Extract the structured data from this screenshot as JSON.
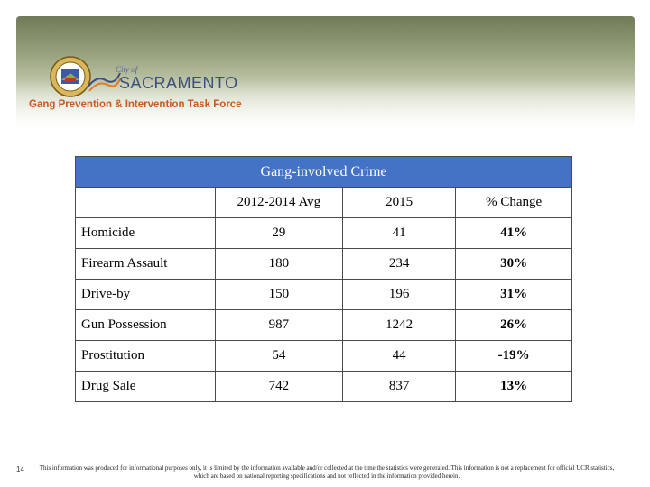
{
  "header": {
    "city_of": "City of",
    "city_name": "SACRAMENTO",
    "tagline": "Gang Prevention & Intervention Task Force"
  },
  "table": {
    "title": "Gang-involved  Crime",
    "columns": [
      "",
      "2012-2014 Avg",
      "2015",
      "% Change"
    ],
    "rows": [
      {
        "label": "Homicide",
        "avg": "29",
        "y2015": "41",
        "change": "41%"
      },
      {
        "label": "Firearm Assault",
        "avg": "180",
        "y2015": "234",
        "change": "30%"
      },
      {
        "label": "Drive-by",
        "avg": "150",
        "y2015": "196",
        "change": "31%"
      },
      {
        "label": "Gun Possession",
        "avg": "987",
        "y2015": "1242",
        "change": "26%"
      },
      {
        "label": "Prostitution",
        "avg": "54",
        "y2015": "44",
        "change": "-19%"
      },
      {
        "label": "Drug Sale",
        "avg": "742",
        "y2015": "837",
        "change": "13%"
      }
    ]
  },
  "footer": {
    "slide_number": "14",
    "note": "This information was produced for informational purposes only, it is limited by the information available and/or collected at the time the statistics were generated. This information is not a replacement for official UCR statistics, which are based on national reporting specifications and not reflected in the information provided herein."
  },
  "colors": {
    "title_bar": "#4472c4",
    "tagline": "#c85a1e",
    "city_name": "#3c4f7a",
    "banner": "#6f7b57"
  }
}
